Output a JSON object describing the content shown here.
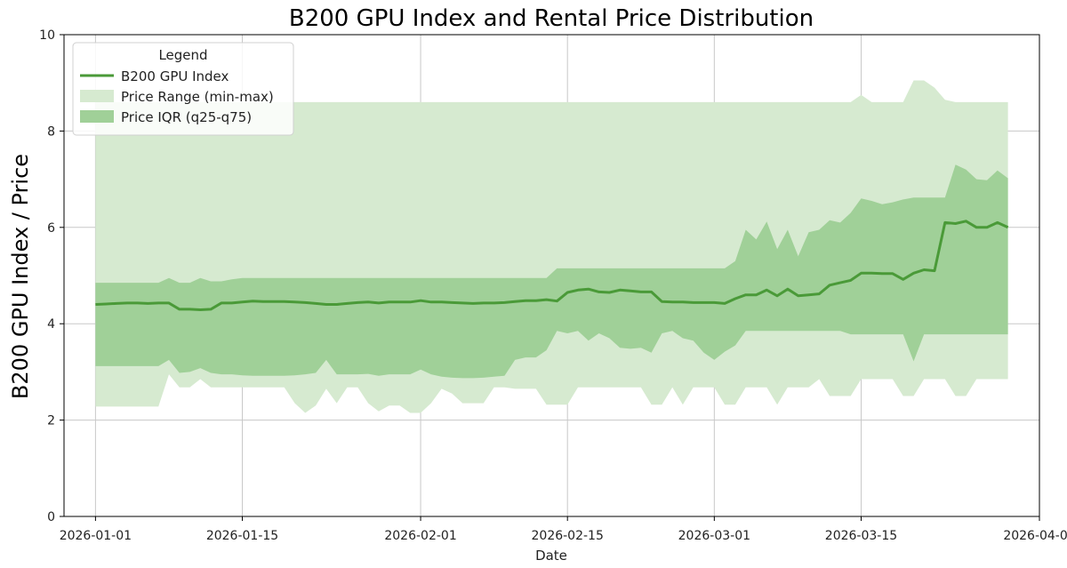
{
  "chart_data": {
    "type": "line",
    "title": "B200 GPU Index and Rental Price Distribution",
    "xlabel": "Date",
    "ylabel": "B200 GPU Index / Price",
    "ylim": [
      0,
      10
    ],
    "xlim": [
      "2025-12-29",
      "2026-04-01"
    ],
    "x_ticks": [
      "2026-01-01",
      "2026-01-15",
      "2026-02-01",
      "2026-02-15",
      "2026-03-01",
      "2026-03-15",
      "2026-04-01"
    ],
    "y_ticks": [
      "0",
      "2",
      "4",
      "6",
      "8",
      "10"
    ],
    "grid": true,
    "legend": {
      "title": "Legend",
      "placement": "upper-left",
      "entries": [
        "B200 GPU Index",
        "Price Range (min-max)",
        "Price IQR (q25-q75)"
      ]
    },
    "colors": {
      "index": "#4a9a38",
      "range": "#d6ead0",
      "iqr": "#a0d098",
      "grid": "#c8c8c8"
    },
    "series": [
      {
        "name": "B200 GPU Index",
        "x": [
          "2026-01-01",
          "2026-01-02",
          "2026-01-03",
          "2026-01-04",
          "2026-01-05",
          "2026-01-06",
          "2026-01-07",
          "2026-01-08",
          "2026-01-09",
          "2026-01-10",
          "2026-01-11",
          "2026-01-12",
          "2026-01-13",
          "2026-01-14",
          "2026-01-15",
          "2026-01-16",
          "2026-01-17",
          "2026-01-18",
          "2026-01-19",
          "2026-01-20",
          "2026-01-21",
          "2026-01-22",
          "2026-01-23",
          "2026-01-24",
          "2026-01-25",
          "2026-01-26",
          "2026-01-27",
          "2026-01-28",
          "2026-01-29",
          "2026-01-30",
          "2026-01-31",
          "2026-02-01",
          "2026-02-02",
          "2026-02-03",
          "2026-02-04",
          "2026-02-05",
          "2026-02-06",
          "2026-02-07",
          "2026-02-08",
          "2026-02-09",
          "2026-02-10",
          "2026-02-11",
          "2026-02-12",
          "2026-02-13",
          "2026-02-14",
          "2026-02-15",
          "2026-02-16",
          "2026-02-17",
          "2026-02-18",
          "2026-02-19",
          "2026-02-20",
          "2026-02-21",
          "2026-02-22",
          "2026-02-23",
          "2026-02-24",
          "2026-02-25",
          "2026-02-26",
          "2026-02-27",
          "2026-02-28",
          "2026-03-01",
          "2026-03-02",
          "2026-03-03",
          "2026-03-04",
          "2026-03-05",
          "2026-03-06",
          "2026-03-07",
          "2026-03-08",
          "2026-03-09",
          "2026-03-10",
          "2026-03-11",
          "2026-03-12",
          "2026-03-13",
          "2026-03-14",
          "2026-03-15",
          "2026-03-16",
          "2026-03-17",
          "2026-03-18",
          "2026-03-19",
          "2026-03-20",
          "2026-03-21",
          "2026-03-22",
          "2026-03-23",
          "2026-03-24",
          "2026-03-25",
          "2026-03-26",
          "2026-03-27",
          "2026-03-28",
          "2026-03-29"
        ],
        "y": [
          4.4,
          4.41,
          4.42,
          4.43,
          4.43,
          4.42,
          4.43,
          4.43,
          4.3,
          4.3,
          4.29,
          4.3,
          4.43,
          4.43,
          4.45,
          4.47,
          4.46,
          4.46,
          4.46,
          4.45,
          4.44,
          4.42,
          4.4,
          4.4,
          4.42,
          4.44,
          4.45,
          4.43,
          4.45,
          4.45,
          4.45,
          4.48,
          4.45,
          4.45,
          4.44,
          4.43,
          4.42,
          4.43,
          4.43,
          4.44,
          4.46,
          4.48,
          4.48,
          4.5,
          4.47,
          4.65,
          4.7,
          4.72,
          4.66,
          4.65,
          4.7,
          4.68,
          4.66,
          4.66,
          4.46,
          4.45,
          4.45,
          4.44,
          4.44,
          4.44,
          4.42,
          4.52,
          4.6,
          4.6,
          4.7,
          4.58,
          4.72,
          4.58,
          4.6,
          4.62,
          4.8,
          4.85,
          4.9,
          5.05,
          5.05,
          5.04,
          5.04,
          4.92,
          5.05,
          5.12,
          5.1,
          6.1,
          6.08,
          6.13,
          6.0,
          6.0,
          6.1,
          6.0
        ]
      },
      {
        "name": "Price Range (min-max)",
        "x": [
          "2026-01-01",
          "2026-01-02",
          "2026-01-03",
          "2026-01-04",
          "2026-01-05",
          "2026-01-06",
          "2026-01-07",
          "2026-01-08",
          "2026-01-09",
          "2026-01-10",
          "2026-01-11",
          "2026-01-12",
          "2026-01-13",
          "2026-01-14",
          "2026-01-15",
          "2026-01-16",
          "2026-01-17",
          "2026-01-18",
          "2026-01-19",
          "2026-01-20",
          "2026-01-21",
          "2026-01-22",
          "2026-01-23",
          "2026-01-24",
          "2026-01-25",
          "2026-01-26",
          "2026-01-27",
          "2026-01-28",
          "2026-01-29",
          "2026-01-30",
          "2026-01-31",
          "2026-02-01",
          "2026-02-02",
          "2026-02-03",
          "2026-02-04",
          "2026-02-05",
          "2026-02-06",
          "2026-02-07",
          "2026-02-08",
          "2026-02-09",
          "2026-02-10",
          "2026-02-11",
          "2026-02-12",
          "2026-02-13",
          "2026-02-14",
          "2026-02-15",
          "2026-02-16",
          "2026-02-17",
          "2026-02-18",
          "2026-02-19",
          "2026-02-20",
          "2026-02-21",
          "2026-02-22",
          "2026-02-23",
          "2026-02-24",
          "2026-02-25",
          "2026-02-26",
          "2026-02-27",
          "2026-02-28",
          "2026-03-01",
          "2026-03-02",
          "2026-03-03",
          "2026-03-04",
          "2026-03-05",
          "2026-03-06",
          "2026-03-07",
          "2026-03-08",
          "2026-03-09",
          "2026-03-10",
          "2026-03-11",
          "2026-03-12",
          "2026-03-13",
          "2026-03-14",
          "2026-03-15",
          "2026-03-16",
          "2026-03-17",
          "2026-03-18",
          "2026-03-19",
          "2026-03-20",
          "2026-03-21",
          "2026-03-22",
          "2026-03-23",
          "2026-03-24",
          "2026-03-25",
          "2026-03-26",
          "2026-03-27",
          "2026-03-28",
          "2026-03-29"
        ],
        "min": [
          2.28,
          2.28,
          2.28,
          2.28,
          2.28,
          2.28,
          2.28,
          2.95,
          2.68,
          2.68,
          2.85,
          2.68,
          2.68,
          2.68,
          2.68,
          2.68,
          2.68,
          2.68,
          2.68,
          2.35,
          2.15,
          2.3,
          2.65,
          2.35,
          2.68,
          2.68,
          2.35,
          2.18,
          2.3,
          2.3,
          2.15,
          2.15,
          2.35,
          2.65,
          2.55,
          2.35,
          2.35,
          2.35,
          2.68,
          2.68,
          2.65,
          2.65,
          2.65,
          2.32,
          2.32,
          2.32,
          2.68,
          2.68,
          2.68,
          2.68,
          2.68,
          2.68,
          2.68,
          2.32,
          2.32,
          2.68,
          2.32,
          2.68,
          2.68,
          2.68,
          2.32,
          2.32,
          2.68,
          2.68,
          2.68,
          2.32,
          2.68,
          2.68,
          2.68,
          2.85,
          2.5,
          2.5,
          2.5,
          2.85,
          2.85,
          2.85,
          2.85,
          2.5,
          2.5,
          2.85,
          2.85,
          2.85,
          2.5,
          2.5,
          2.85,
          2.85,
          2.85,
          2.85
        ],
        "max": [
          8.6,
          8.6,
          8.6,
          8.6,
          8.6,
          8.6,
          8.6,
          8.6,
          8.6,
          8.6,
          8.6,
          8.6,
          8.6,
          8.6,
          8.6,
          8.6,
          8.6,
          8.6,
          8.6,
          8.6,
          8.6,
          8.6,
          8.6,
          8.6,
          8.6,
          8.6,
          8.6,
          8.6,
          8.6,
          8.6,
          8.6,
          8.6,
          8.6,
          8.6,
          8.6,
          8.6,
          8.6,
          8.6,
          8.6,
          8.6,
          8.6,
          8.6,
          8.6,
          8.6,
          8.6,
          8.6,
          8.6,
          8.6,
          8.6,
          8.6,
          8.6,
          8.6,
          8.6,
          8.6,
          8.6,
          8.6,
          8.6,
          8.6,
          8.6,
          8.6,
          8.6,
          8.6,
          8.6,
          8.6,
          8.6,
          8.6,
          8.6,
          8.6,
          8.6,
          8.6,
          8.6,
          8.6,
          8.6,
          8.75,
          8.6,
          8.6,
          8.6,
          8.6,
          9.05,
          9.05,
          8.9,
          8.65,
          8.6,
          8.6,
          8.6,
          8.6,
          8.6,
          8.6
        ]
      },
      {
        "name": "Price IQR (q25-q75)",
        "x": [
          "2026-01-01",
          "2026-01-02",
          "2026-01-03",
          "2026-01-04",
          "2026-01-05",
          "2026-01-06",
          "2026-01-07",
          "2026-01-08",
          "2026-01-09",
          "2026-01-10",
          "2026-01-11",
          "2026-01-12",
          "2026-01-13",
          "2026-01-14",
          "2026-01-15",
          "2026-01-16",
          "2026-01-17",
          "2026-01-18",
          "2026-01-19",
          "2026-01-20",
          "2026-01-21",
          "2026-01-22",
          "2026-01-23",
          "2026-01-24",
          "2026-01-25",
          "2026-01-26",
          "2026-01-27",
          "2026-01-28",
          "2026-01-29",
          "2026-01-30",
          "2026-01-31",
          "2026-02-01",
          "2026-02-02",
          "2026-02-03",
          "2026-02-04",
          "2026-02-05",
          "2026-02-06",
          "2026-02-07",
          "2026-02-08",
          "2026-02-09",
          "2026-02-10",
          "2026-02-11",
          "2026-02-12",
          "2026-02-13",
          "2026-02-14",
          "2026-02-15",
          "2026-02-16",
          "2026-02-17",
          "2026-02-18",
          "2026-02-19",
          "2026-02-20",
          "2026-02-21",
          "2026-02-22",
          "2026-02-23",
          "2026-02-24",
          "2026-02-25",
          "2026-02-26",
          "2026-02-27",
          "2026-02-28",
          "2026-03-01",
          "2026-03-02",
          "2026-03-03",
          "2026-03-04",
          "2026-03-05",
          "2026-03-06",
          "2026-03-07",
          "2026-03-08",
          "2026-03-09",
          "2026-03-10",
          "2026-03-11",
          "2026-03-12",
          "2026-03-13",
          "2026-03-14",
          "2026-03-15",
          "2026-03-16",
          "2026-03-17",
          "2026-03-18",
          "2026-03-19",
          "2026-03-20",
          "2026-03-21",
          "2026-03-22",
          "2026-03-23",
          "2026-03-24",
          "2026-03-25",
          "2026-03-26",
          "2026-03-27",
          "2026-03-28",
          "2026-03-29"
        ],
        "q25": [
          3.12,
          3.12,
          3.12,
          3.12,
          3.12,
          3.12,
          3.12,
          3.25,
          2.98,
          3.0,
          3.08,
          2.98,
          2.95,
          2.95,
          2.93,
          2.92,
          2.92,
          2.92,
          2.92,
          2.93,
          2.95,
          2.98,
          3.25,
          2.95,
          2.95,
          2.95,
          2.96,
          2.92,
          2.95,
          2.95,
          2.95,
          3.05,
          2.95,
          2.9,
          2.88,
          2.87,
          2.87,
          2.88,
          2.9,
          2.92,
          3.25,
          3.3,
          3.3,
          3.45,
          3.85,
          3.8,
          3.85,
          3.65,
          3.8,
          3.7,
          3.5,
          3.48,
          3.5,
          3.4,
          3.8,
          3.85,
          3.7,
          3.65,
          3.4,
          3.25,
          3.42,
          3.55,
          3.85,
          3.85,
          3.85,
          3.85,
          3.85,
          3.85,
          3.85,
          3.85,
          3.85,
          3.85,
          3.78,
          3.78,
          3.78,
          3.78,
          3.78,
          3.78,
          3.22,
          3.78,
          3.78,
          3.78,
          3.78,
          3.78,
          3.78,
          3.78,
          3.78,
          3.78
        ],
        "q75": [
          4.85,
          4.85,
          4.85,
          4.85,
          4.85,
          4.85,
          4.85,
          4.95,
          4.85,
          4.85,
          4.95,
          4.88,
          4.88,
          4.92,
          4.95,
          4.95,
          4.95,
          4.95,
          4.95,
          4.95,
          4.95,
          4.95,
          4.95,
          4.95,
          4.95,
          4.95,
          4.95,
          4.95,
          4.95,
          4.95,
          4.95,
          4.95,
          4.95,
          4.95,
          4.95,
          4.95,
          4.95,
          4.95,
          4.95,
          4.95,
          4.95,
          4.95,
          4.95,
          4.95,
          5.15,
          5.15,
          5.15,
          5.15,
          5.15,
          5.15,
          5.15,
          5.15,
          5.15,
          5.15,
          5.15,
          5.15,
          5.15,
          5.15,
          5.15,
          5.15,
          5.15,
          5.3,
          5.95,
          5.75,
          6.12,
          5.55,
          5.95,
          5.4,
          5.9,
          5.95,
          6.15,
          6.1,
          6.3,
          6.6,
          6.55,
          6.48,
          6.52,
          6.58,
          6.62,
          6.62,
          6.62,
          6.62,
          7.3,
          7.2,
          7.0,
          6.98,
          7.18,
          7.02
        ]
      }
    ]
  }
}
